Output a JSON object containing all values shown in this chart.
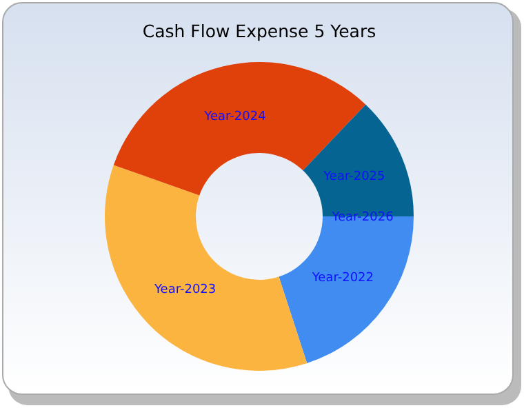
{
  "chart_data": {
    "type": "donut",
    "title": "Cash Flow Expense 5 Years",
    "categories": [
      "Year-2022",
      "Year-2023",
      "Year-2024",
      "Year-2025",
      "Year-2026"
    ],
    "values": [
      20,
      35.4,
      31.7,
      12.9,
      0
    ],
    "colors": [
      "#418cf0",
      "#fcb441",
      "#e0400a",
      "#056492",
      "#bfbfbf"
    ]
  }
}
